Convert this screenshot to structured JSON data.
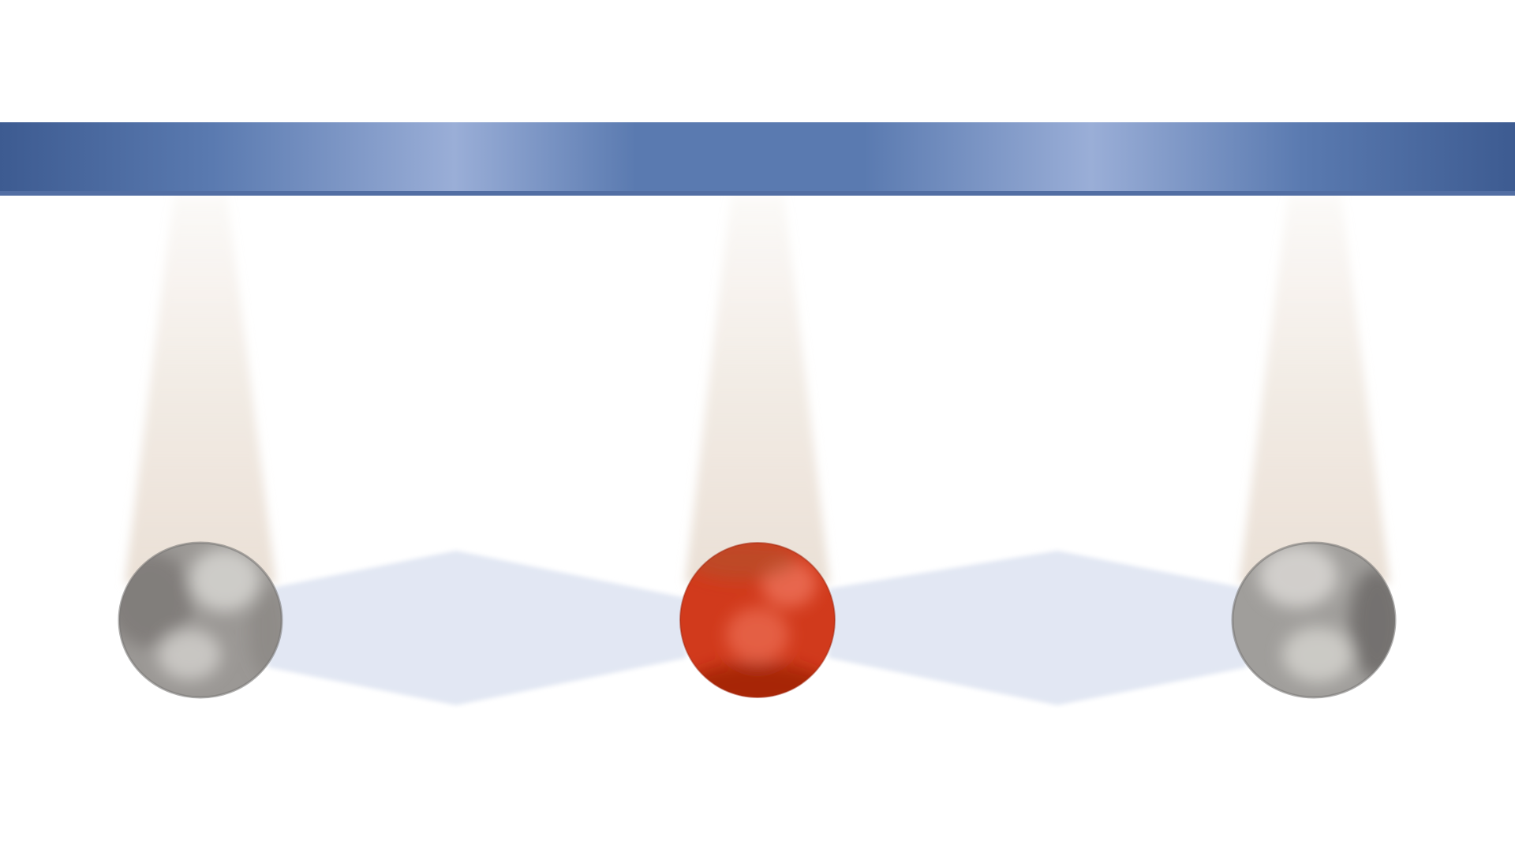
{
  "diagram": {
    "bar": {
      "colors": {
        "dark": "#3d5b91",
        "mid": "#5a7ab0",
        "light": "#9aaed7",
        "edge": "#526ea3"
      }
    },
    "beams": {
      "color": "#e7dbcf"
    },
    "links": {
      "color": "#dde3f1"
    },
    "spheres": [
      {
        "kind": "gray-sphere",
        "colors": {
          "base": "#9b9895",
          "highlight": "#d3d1cd",
          "shadow": "#6f6c6a"
        }
      },
      {
        "kind": "red-sphere",
        "colors": {
          "base": "#d13a1c",
          "highlight": "#ec6e55",
          "shadow": "#9c1f08"
        }
      },
      {
        "kind": "gray-sphere",
        "colors": {
          "base": "#a09e9b",
          "highlight": "#d6d4d0",
          "shadow": "#6d6a68"
        }
      }
    ]
  }
}
